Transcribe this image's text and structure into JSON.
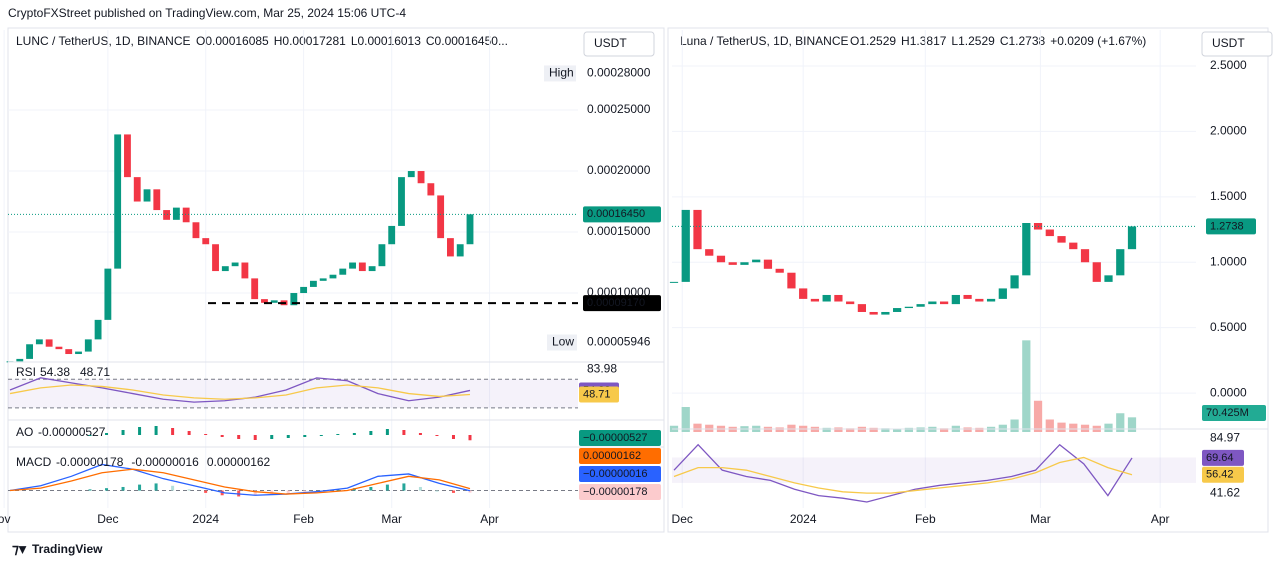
{
  "header": "CryptoFXStreet published on TradingView.com, Mar 25, 2024 15:06 UTC-4",
  "footer": "TradingView",
  "chart_data": [
    {
      "type": "candlestick",
      "title": "LUNC / TetherUS, 1D, BINANCE",
      "ohlc_legend": [
        "O0.00016085",
        "H0.00017281",
        "L0.00016013",
        "C0.00016450..."
      ],
      "currency": "USDT",
      "up_color": "#089981",
      "down_color": "#f23645",
      "closes": [
        4.4e-05,
        4.6e-05,
        5.8e-05,
        6.2e-05,
        5.6e-05,
        5.4e-05,
        5e-05,
        5.2e-05,
        6.2e-05,
        7.8e-05,
        0.00012,
        0.00023,
        0.000195,
        0.000175,
        0.000185,
        0.000168,
        0.00016,
        0.00017,
        0.000158,
        0.000145,
        0.00014,
        0.000118,
        0.000122,
        0.000125,
        0.000112,
        9.5e-05,
        9.2e-05,
        9.4e-05,
        9e-05,
        0.0001,
        0.000105,
        0.00011,
        0.000112,
        0.000115,
        0.00012,
        0.000125,
        0.000118,
        0.000122,
        0.00014,
        0.000155,
        0.000195,
        0.0002,
        0.00019,
        0.00018,
        0.000145,
        0.00013,
        0.00014,
        0.0001645
      ],
      "ylim": [
        4.92e-05,
        0.0003156
      ],
      "yticks": [
        {
          "value": 0.00025,
          "label": "0.00025000"
        },
        {
          "value": 0.0002,
          "label": "0.00020000"
        },
        {
          "value": 0.00015,
          "label": "0.00015000"
        },
        {
          "value": 0.0001,
          "label": "0.00010000"
        }
      ],
      "xticks": [
        {
          "value": -0.6,
          "label": "ov"
        },
        {
          "value": 10,
          "label": "Dec"
        },
        {
          "value": 20,
          "label": "2024"
        },
        {
          "value": 30,
          "label": "Feb"
        },
        {
          "value": 39,
          "label": "Mar"
        },
        {
          "value": 49,
          "label": "Apr"
        }
      ],
      "last_price": {
        "value": 0.0001645,
        "label": "0.00016450"
      },
      "high": {
        "name": "High",
        "value": 0.00028,
        "label": "0.00028000"
      },
      "low": {
        "name": "Low",
        "value": 5.946e-05,
        "label": "0.00005946"
      },
      "support": {
        "value": 9.17e-05,
        "label": "0.00009170"
      },
      "rsi": {
        "name": "RSI",
        "ylim": [
          20,
          90
        ],
        "yticks": [
          83.98
        ],
        "bands": [
          70,
          30
        ],
        "series": [
          {
            "color": "#7e57c2",
            "values": [
              55,
              72,
              65,
              58,
              50,
              42,
              38,
              40,
              45,
              55,
              72,
              68,
              50,
              40,
              45,
              54.38
            ]
          },
          {
            "color": "#f7c94a",
            "values": [
              50,
              58,
              62,
              60,
              55,
              48,
              44,
              42,
              44,
              48,
              58,
              62,
              58,
              50,
              46,
              48.71
            ]
          }
        ]
      },
      "ao": {
        "name": "AO",
        "ylim": [
          -8e-06,
          1e-05
        ],
        "legend_label": "-0.00000527",
        "axis_label": "−0.00000527",
        "values": [
          -1e-06,
          2e-06,
          5e-06,
          8e-06,
          9e-06,
          7e-06,
          4e-06,
          1e-06,
          -2e-06,
          -4e-06,
          -5e-06,
          -4e-06,
          -3e-06,
          -2e-06,
          -1e-06,
          1e-06,
          2e-06,
          4e-06,
          6e-06,
          5e-06,
          2e-06,
          -1e-06,
          -4e-06,
          -5.27e-06
        ]
      },
      "macd": {
        "name": "MACD",
        "ylim": [
          -8e-06,
          3e-05
        ],
        "histogram": {
          "color": "#f7a1a8",
          "legend_label": "-0.00000178",
          "axis_label": "−0.00000178",
          "values": [
            1e-06,
            2e-06,
            3e-06,
            5e-06,
            6e-06,
            4e-06,
            1e-06,
            -2e-06,
            -4e-06,
            -5e-06,
            -4e-06,
            -3e-06,
            -2e-06,
            -1e-06,
            0,
            1e-06,
            2e-06,
            3e-06,
            5e-06,
            6e-06,
            3e-06,
            0,
            -2e-06,
            -1.78e-06
          ]
        },
        "macd_line": {
          "color": "#2962ff",
          "legend_label": "-0.00000016",
          "axis_label": "−0.00000016",
          "values": [
            0,
            4e-06,
            1.2e-05,
            2.2e-05,
            1.8e-05,
            1e-05,
            4e-06,
            -2e-06,
            -4e-06,
            -3e-06,
            -1e-06,
            2e-06,
            1.2e-05,
            1.4e-05,
            6e-06,
            -1.6e-07
          ]
        },
        "signal": {
          "color": "#ff6d00",
          "legend_label": "0.00000162",
          "axis_label": "0.00000162",
          "values": [
            0,
            2e-06,
            8e-06,
            1.5e-05,
            1.8e-05,
            1.5e-05,
            9e-06,
            3e-06,
            -1e-06,
            -3e-06,
            -2e-06,
            0,
            6e-06,
            1.2e-05,
            9e-06,
            1.62e-06
          ]
        }
      }
    },
    {
      "type": "candlestick",
      "title": "Luna / TetherUS, 1D, BINANCE",
      "ohlc_legend": [
        "O1.2529",
        "H1.3817",
        "L1.2529",
        "C1.2738",
        "+0.0209 (+1.67%)"
      ],
      "currency": "USDT",
      "up_color": "#089981",
      "down_color": "#f23645",
      "closes": [
        0.85,
        1.4,
        1.1,
        1.05,
        1,
        0.98,
        1,
        1.02,
        0.95,
        0.92,
        0.8,
        0.72,
        0.7,
        0.75,
        0.7,
        0.68,
        0.62,
        0.6,
        0.62,
        0.65,
        0.66,
        0.68,
        0.7,
        0.68,
        0.75,
        0.72,
        0.7,
        0.72,
        0.8,
        0.9,
        1.3,
        1.25,
        1.2,
        1.15,
        1.1,
        1,
        0.85,
        0.9,
        1.1,
        1.2738
      ],
      "ylim": [
        -0.282,
        2.775
      ],
      "yticks": [
        {
          "value": 2.5,
          "label": "2.5000"
        },
        {
          "value": 2,
          "label": "2.0000"
        },
        {
          "value": 1.5,
          "label": "1.5000"
        },
        {
          "value": 1,
          "label": "1.0000"
        },
        {
          "value": 0.5,
          "label": "0.5000"
        },
        {
          "value": 0,
          "label": "0.0000"
        }
      ],
      "xticks": [
        {
          "value": 0.7,
          "label": "Dec"
        },
        {
          "value": 11,
          "label": "2024"
        },
        {
          "value": 21.4,
          "label": "Feb"
        },
        {
          "value": 31.2,
          "label": "Mar"
        },
        {
          "value": 41.4,
          "label": "Apr"
        }
      ],
      "last_price": {
        "value": 1.2738,
        "label": "1.2738"
      },
      "volume": {
        "ylim": [
          0,
          480
        ],
        "last_label": "70.425M",
        "values": [
          30,
          120,
          40,
          35,
          30,
          25,
          28,
          30,
          25,
          22,
          35,
          30,
          25,
          20,
          22,
          18,
          25,
          20,
          18,
          15,
          20,
          22,
          25,
          18,
          30,
          22,
          20,
          25,
          35,
          60,
          440,
          150,
          60,
          45,
          40,
          35,
          30,
          40,
          90,
          70.425
        ]
      },
      "rsi": {
        "ylim": [
          35,
          90
        ],
        "yticks": [
          84.97,
          41.62
        ],
        "series": [
          {
            "color": "#7e57c2",
            "values": [
              60,
              80,
              60,
              55,
              52,
              45,
              40,
              38,
              35,
              40,
              45,
              48,
              50,
              52,
              55,
              60,
              80,
              65,
              40,
              69.64
            ]
          },
          {
            "color": "#f7c94a",
            "values": [
              55,
              62,
              62,
              60,
              55,
              50,
              46,
              43,
              42,
              42,
              44,
              46,
              48,
              50,
              53,
              58,
              66,
              70,
              62,
              56.42
            ]
          }
        ]
      }
    }
  ]
}
